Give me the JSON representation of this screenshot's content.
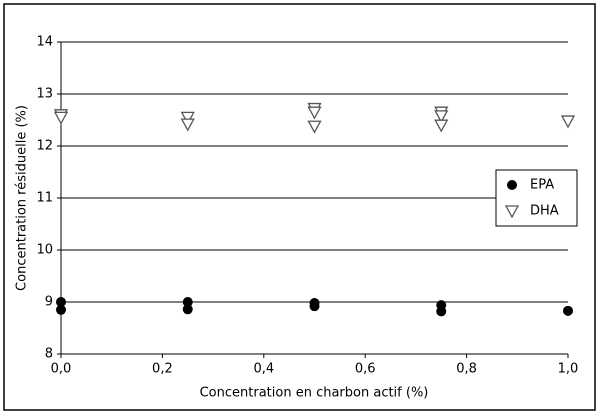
{
  "chart_data": {
    "type": "scatter",
    "x_label": "Concentration en charbon actif (%)",
    "y_label": "Concentration résiduelle (%)",
    "xlim": [
      0,
      1
    ],
    "xticks": [
      {
        "value": 0,
        "label": "0,0"
      },
      {
        "value": 0.2,
        "label": "0,2"
      },
      {
        "value": 0.4,
        "label": "0,4"
      },
      {
        "value": 0.6,
        "label": "0,6"
      },
      {
        "value": 0.8,
        "label": "0,8"
      },
      {
        "value": 1,
        "label": "1,0"
      }
    ],
    "ylim": [
      8,
      14
    ],
    "yticks": [
      8,
      9,
      10,
      11,
      12,
      13,
      14
    ],
    "grid": true,
    "legend": "right",
    "series": [
      {
        "name": "EPA",
        "marker": "circle",
        "color": "#000000",
        "x": [
          0,
          0,
          0.25,
          0.25,
          0.5,
          0.5,
          0.75,
          0.75,
          1
        ],
        "values": [
          9.0,
          8.85,
          9.0,
          8.86,
          8.98,
          8.92,
          8.94,
          8.82,
          8.83
        ]
      },
      {
        "name": "DHA",
        "marker": "triangle-down",
        "color": "#555555",
        "x": [
          0,
          0,
          0.25,
          0.25,
          0.5,
          0.5,
          0.5,
          0.75,
          0.75,
          0.75,
          1
        ],
        "values": [
          12.6,
          12.55,
          12.55,
          12.42,
          12.72,
          12.65,
          12.38,
          12.65,
          12.58,
          12.4,
          12.48
        ]
      }
    ]
  }
}
